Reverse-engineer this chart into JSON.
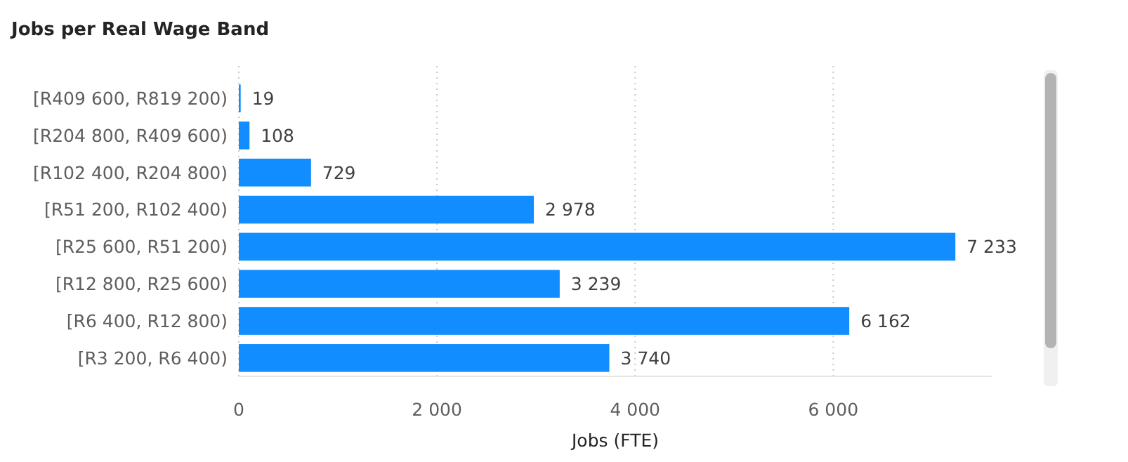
{
  "chart_data": {
    "type": "bar",
    "orientation": "horizontal",
    "title": "Jobs per Real Wage Band",
    "xlabel": "Jobs (FTE)",
    "categories": [
      "[R409 600, R819 200)",
      "[R204 800, R409 600)",
      "[R102 400, R204 800)",
      "[R51 200, R102 400)",
      "[R25 600, R51 200)",
      "[R12 800, R25 600)",
      "[R6 400, R12 800)",
      "[R3 200, R6 400)"
    ],
    "values": [
      19,
      108,
      729,
      2978,
      7233,
      3239,
      6162,
      3740
    ],
    "value_labels": [
      "19",
      "108",
      "729",
      "2 978",
      "7 233",
      "3 239",
      "6 162",
      "3 740"
    ],
    "color": "#118dff",
    "xlim": [
      0,
      7600
    ],
    "xticks": [
      0,
      {
        "value": 2000,
        "label": "2 000"
      },
      {
        "value": 4000,
        "label": "4 000"
      },
      {
        "value": 6000,
        "label": "6 000"
      }
    ],
    "grid": "x"
  }
}
